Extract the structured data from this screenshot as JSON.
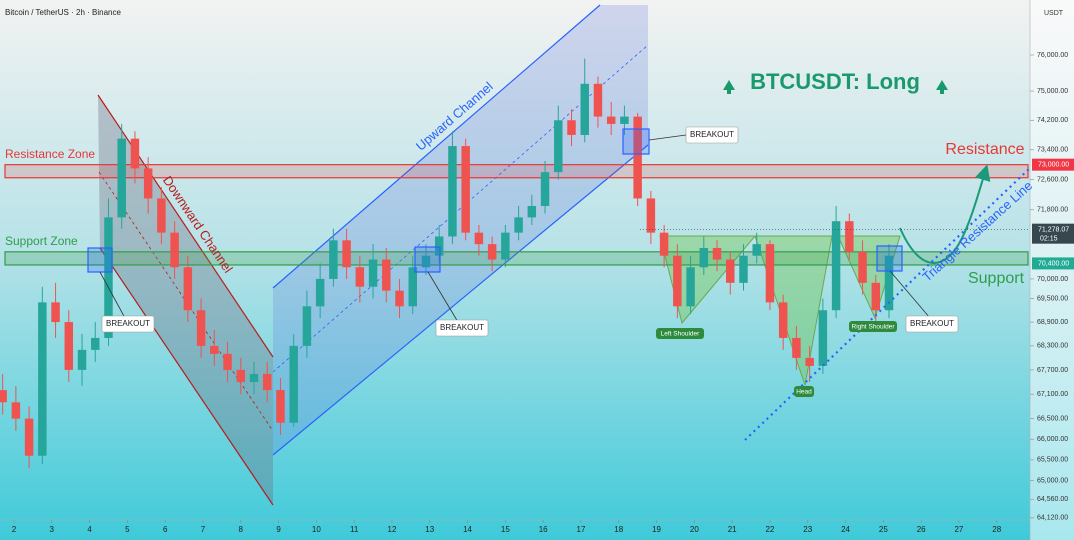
{
  "chart_data": {
    "type": "candlestick",
    "title": "Bitcoin / TetherUS · 2h · Binance",
    "currency": "USDT",
    "x": [
      1.7,
      2.05,
      2.4,
      2.75,
      3.1,
      3.45,
      3.8,
      4.15,
      4.5,
      4.85,
      5.2,
      5.55,
      5.9,
      6.25,
      6.6,
      6.95,
      7.3,
      7.65,
      8,
      8.35,
      8.7,
      9.05,
      9.4,
      9.75,
      10.1,
      10.45,
      10.8,
      11.15,
      11.5,
      11.85,
      12.2,
      12.55,
      12.9,
      13.25,
      13.6,
      13.95,
      14.3,
      14.65,
      15,
      15.35,
      15.7,
      16.05,
      16.4,
      16.75,
      17.1,
      17.45,
      17.8,
      18.15,
      18.5,
      18.85,
      19.2,
      19.55,
      19.9,
      20.25,
      20.6,
      20.95,
      21.3,
      21.65,
      22,
      22.35,
      22.7,
      23.05,
      23.4,
      23.75,
      24.1,
      24.45,
      24.8,
      25.15
    ],
    "open": [
      67200,
      66900,
      66500,
      65600,
      69400,
      68900,
      67700,
      68200,
      68500,
      71600,
      73700,
      72900,
      72100,
      71200,
      70300,
      69200,
      68300,
      68100,
      67700,
      67400,
      67600,
      67200,
      66400,
      68300,
      69300,
      70000,
      71000,
      70300,
      69800,
      70500,
      69700,
      69300,
      70300,
      70600,
      71100,
      73500,
      71200,
      70900,
      70500,
      71200,
      71600,
      71900,
      72800,
      74200,
      73800,
      75200,
      74300,
      74100,
      74300,
      72100,
      71200,
      70600,
      69300,
      70300,
      70800,
      70500,
      69900,
      70600,
      70900,
      69400,
      68500,
      68000,
      67800,
      69200,
      71500,
      70700,
      69900,
      69200
    ],
    "high": [
      67600,
      67300,
      66800,
      69800,
      69900,
      69200,
      68600,
      68900,
      72100,
      74100,
      73900,
      73200,
      72400,
      71500,
      70600,
      69500,
      68700,
      68400,
      68000,
      67900,
      67900,
      67500,
      68600,
      69700,
      70400,
      71300,
      71300,
      70600,
      70900,
      70800,
      70000,
      70600,
      70900,
      71400,
      73900,
      73700,
      71400,
      71100,
      71400,
      71900,
      72200,
      73100,
      74600,
      74500,
      75900,
      75400,
      74700,
      74600,
      74400,
      72300,
      71400,
      70900,
      70600,
      71100,
      71000,
      70700,
      70900,
      71200,
      71000,
      69600,
      68800,
      68300,
      69500,
      71900,
      71700,
      71000,
      70100,
      70900
    ],
    "low": [
      66600,
      66200,
      65300,
      65400,
      68500,
      67400,
      67300,
      67900,
      68300,
      71300,
      72500,
      71700,
      70900,
      70000,
      68900,
      68000,
      67800,
      67400,
      67100,
      67100,
      66900,
      66100,
      66300,
      68000,
      69000,
      69800,
      70000,
      69400,
      69500,
      69400,
      69000,
      69100,
      70100,
      70400,
      70900,
      71000,
      70600,
      70200,
      70300,
      71000,
      71400,
      71700,
      72600,
      73500,
      73600,
      74000,
      73800,
      73800,
      71900,
      70900,
      70300,
      69000,
      69100,
      70100,
      70200,
      69600,
      69700,
      70400,
      69200,
      68200,
      67700,
      67400,
      67600,
      69000,
      70500,
      69600,
      68900,
      69000
    ],
    "close": [
      66900,
      66500,
      65600,
      69400,
      68900,
      67700,
      68200,
      68500,
      71600,
      73700,
      72900,
      72100,
      71200,
      70300,
      69200,
      68300,
      68100,
      67700,
      67400,
      67600,
      67200,
      66400,
      68300,
      69300,
      70000,
      71000,
      70300,
      69800,
      70500,
      69700,
      69300,
      70300,
      70600,
      71100,
      73500,
      71200,
      70900,
      70500,
      71200,
      71600,
      71900,
      72800,
      74200,
      73800,
      75200,
      74300,
      74100,
      74300,
      72100,
      71200,
      70600,
      69300,
      70300,
      70800,
      70500,
      69900,
      70600,
      70900,
      69400,
      68500,
      68000,
      67800,
      69200,
      71500,
      70700,
      69900,
      69200,
      70600
    ],
    "up_color": "#26a69a",
    "down_color": "#ef5350",
    "log_scale": true,
    "xlim": [
      1.63,
      28.88
    ],
    "xticks": [
      2,
      3,
      4,
      5,
      6,
      7,
      8,
      9,
      10,
      11,
      12,
      13,
      14,
      15,
      16,
      17,
      18,
      19,
      20,
      21,
      22,
      23,
      24,
      25,
      26,
      27,
      28
    ],
    "ylim": [
      64070,
      77550
    ],
    "yticks": [
      {
        "value": 76000,
        "label": "76,000.00"
      },
      {
        "value": 75000,
        "label": "75,000.00"
      },
      {
        "value": 74200,
        "label": "74,200.00"
      },
      {
        "value": 73400,
        "label": "73,400.00"
      },
      {
        "value": 72600,
        "label": "72,600.00"
      },
      {
        "value": 71800,
        "label": "71,800.00"
      },
      {
        "value": 70000,
        "label": "70,000.00"
      },
      {
        "value": 69500,
        "label": "69,500.00"
      },
      {
        "value": 68900,
        "label": "68,900.00"
      },
      {
        "value": 68300,
        "label": "68,300.00"
      },
      {
        "value": 67700,
        "label": "67,700.00"
      },
      {
        "value": 67100,
        "label": "67,100.00"
      },
      {
        "value": 66500,
        "label": "66,500.00"
      },
      {
        "value": 66000,
        "label": "66,000.00"
      },
      {
        "value": 65500,
        "label": "65,500.00"
      },
      {
        "value": 65000,
        "label": "65,000.00"
      },
      {
        "value": 64560,
        "label": "64,560.00"
      },
      {
        "value": 64120,
        "label": "64,120.00"
      }
    ],
    "price_labels": [
      {
        "value": 73000,
        "label": "73,000.00",
        "color": "#f23645"
      },
      {
        "value": 71278.07,
        "label": "71,278.07",
        "sub": "02:15",
        "color": "#37474f"
      },
      {
        "value": 70400,
        "label": "70,400.00",
        "color": "#22ab94"
      }
    ],
    "resistance_zone": [
      72650,
      73000
    ],
    "support_zone": [
      70360,
      70700
    ],
    "annotations": {
      "headline": "BTCUSDT: Long",
      "resistance": "Resistance",
      "support": "Support",
      "resistance_zone": "Resistance Zone",
      "support_zone": "Support Zone",
      "upward_channel": "Upward Channel",
      "downward_channel": "Downward Channel",
      "triangle": "Triangle Resistance Line",
      "breakouts": [
        "BREAKOUT",
        "BREAKOUT",
        "BREAKOUT",
        "BREAKOUT"
      ],
      "left_shoulder": "Left Shoulder",
      "head": "Head",
      "right_shoulder": "Right Shoulder"
    }
  }
}
